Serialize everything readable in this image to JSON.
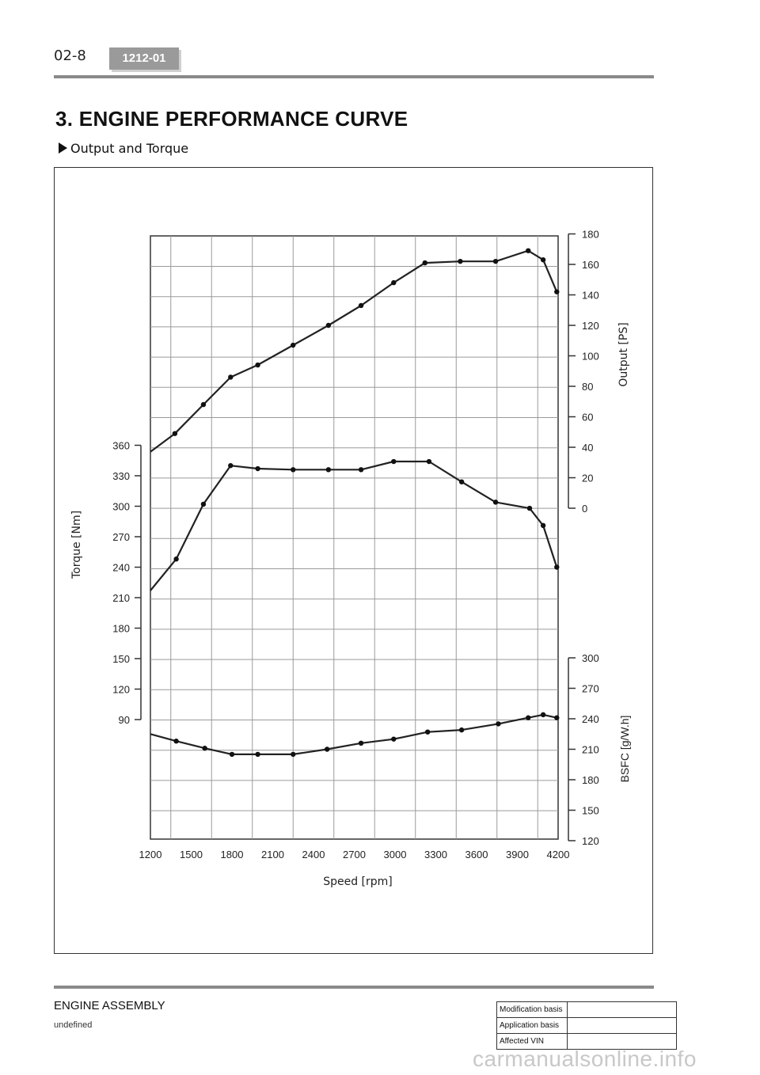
{
  "header": {
    "page_number": "02-8",
    "code": "1212-01"
  },
  "section": {
    "title": "3. ENGINE PERFORMANCE CURVE",
    "subtitle": "Output and Torque"
  },
  "chart_data": {
    "type": "line",
    "xlabel": "Speed [rpm]",
    "x_ticks": [
      1200,
      1500,
      1800,
      2100,
      2400,
      2700,
      3000,
      3300,
      3600,
      3900,
      4200
    ],
    "xlim": [
      1200,
      4200
    ],
    "axes": {
      "torque": {
        "label": "Torque [Nm]",
        "side": "left",
        "ticks": [
          90,
          120,
          150,
          180,
          210,
          240,
          270,
          300,
          330,
          360
        ]
      },
      "output": {
        "label": "Output [PS]",
        "side": "right",
        "ticks": [
          0,
          20,
          40,
          60,
          80,
          100,
          120,
          140,
          160,
          180
        ]
      },
      "bsfc": {
        "label": "BSFC [g/W.h]",
        "side": "right",
        "ticks": [
          120,
          150,
          180,
          210,
          240,
          270,
          300
        ]
      }
    },
    "series": [
      {
        "name": "Output",
        "axis": "output",
        "x": [
          1200,
          1380,
          1590,
          1790,
          1990,
          2250,
          2510,
          2750,
          2990,
          3220,
          3480,
          3740,
          3980,
          4090,
          4190
        ],
        "y": [
          37,
          49,
          68,
          86,
          94,
          107,
          120,
          133,
          148,
          161,
          162,
          162,
          169,
          163,
          142
        ],
        "markers": [
          false,
          true,
          true,
          true,
          true,
          true,
          true,
          true,
          true,
          true,
          true,
          true,
          true,
          true,
          true
        ]
      },
      {
        "name": "Torque",
        "axis": "torque",
        "x": [
          1200,
          1390,
          1590,
          1790,
          1990,
          2250,
          2510,
          2750,
          2990,
          3250,
          3490,
          3740,
          3990,
          4090,
          4190
        ],
        "y": [
          217,
          248,
          302,
          340,
          337,
          336,
          336,
          336,
          344,
          344,
          324,
          304,
          298,
          281,
          240
        ],
        "markers": [
          false,
          true,
          true,
          true,
          true,
          true,
          true,
          true,
          true,
          true,
          true,
          true,
          true,
          true,
          true
        ]
      },
      {
        "name": "BSFC",
        "axis": "bsfc",
        "x": [
          1200,
          1390,
          1600,
          1800,
          1990,
          2250,
          2500,
          2750,
          2990,
          3240,
          3490,
          3760,
          3980,
          4090,
          4190
        ],
        "y": [
          225,
          218,
          211,
          205,
          205,
          205,
          210,
          216,
          220,
          227,
          229,
          235,
          241,
          244,
          241
        ],
        "markers": [
          false,
          true,
          true,
          true,
          true,
          true,
          true,
          true,
          true,
          true,
          true,
          true,
          true,
          true,
          true
        ]
      }
    ]
  },
  "footer": {
    "title": "ENGINE ASSEMBLY",
    "subtitle": "undefined",
    "table": [
      {
        "label": "Modification basis",
        "value": ""
      },
      {
        "label": "Application basis",
        "value": ""
      },
      {
        "label": "Affected VIN",
        "value": ""
      }
    ]
  },
  "watermark": "carmanualsonline.info"
}
